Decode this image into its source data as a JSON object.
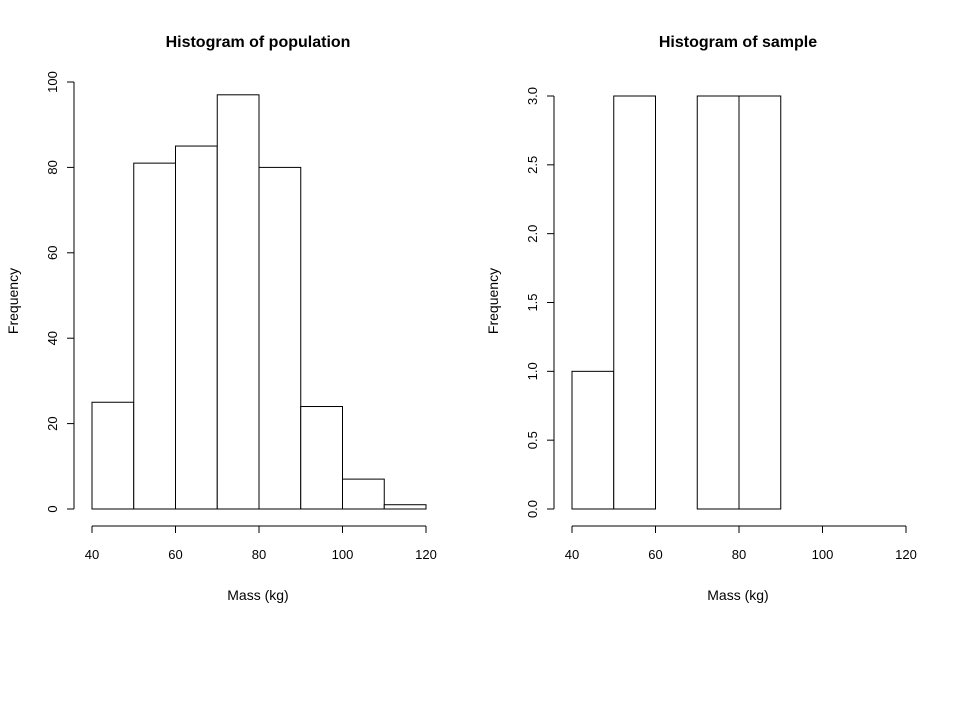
{
  "chart_data": [
    {
      "type": "bar",
      "title": "Histogram of population",
      "xlabel": "Mass (kg)",
      "ylabel": "Frequency",
      "bins": [
        [
          40,
          50
        ],
        [
          50,
          60
        ],
        [
          60,
          70
        ],
        [
          70,
          80
        ],
        [
          80,
          90
        ],
        [
          90,
          100
        ],
        [
          100,
          110
        ],
        [
          110,
          120
        ]
      ],
      "values": [
        25,
        81,
        85,
        97,
        80,
        24,
        7,
        1
      ],
      "xlim": [
        40,
        120
      ],
      "ylim": [
        0,
        100
      ],
      "xticks": [
        40,
        60,
        80,
        100,
        120
      ],
      "yticks": [
        0,
        20,
        40,
        60,
        80,
        100
      ],
      "ytick_labels": [
        "0",
        "20",
        "40",
        "60",
        "80",
        "100"
      ],
      "grid": false
    },
    {
      "type": "bar",
      "title": "Histogram of sample",
      "xlabel": "Mass (kg)",
      "ylabel": "Frequency",
      "bins": [
        [
          40,
          50
        ],
        [
          50,
          60
        ],
        [
          60,
          70
        ],
        [
          70,
          80
        ],
        [
          80,
          90
        ]
      ],
      "values": [
        1,
        3,
        0,
        3,
        3
      ],
      "xlim": [
        40,
        120
      ],
      "ylim": [
        0,
        3
      ],
      "xticks": [
        40,
        60,
        80,
        100,
        120
      ],
      "yticks": [
        0,
        0.5,
        1,
        1.5,
        2,
        2.5,
        3
      ],
      "ytick_labels": [
        "0.0",
        "0.5",
        "1.0",
        "1.5",
        "2.0",
        "2.5",
        "3.0"
      ],
      "grid": false
    }
  ]
}
